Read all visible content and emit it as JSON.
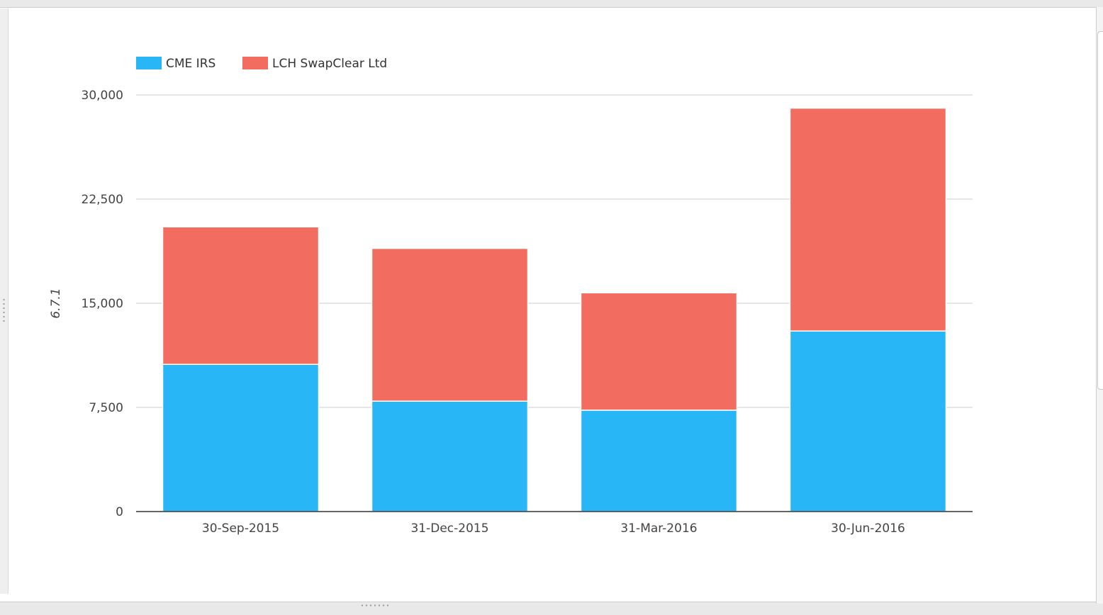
{
  "chart_data": {
    "type": "bar",
    "stacked": true,
    "title": "",
    "xlabel": "",
    "ylabel": "6.7.1",
    "categories": [
      "30-Sep-2015",
      "31-Dec-2015",
      "31-Mar-2016",
      "30-Jun-2016"
    ],
    "series": [
      {
        "name": "CME IRS",
        "color": "#29b6f6",
        "values": [
          10600,
          7950,
          7300,
          13000
        ]
      },
      {
        "name": "LCH SwapClear Ltd",
        "color": "#f26c5f",
        "values": [
          9900,
          11000,
          8450,
          16050
        ]
      }
    ],
    "ylim": [
      0,
      30000
    ],
    "yticks": [
      0,
      7500,
      15000,
      22500,
      30000
    ],
    "ytick_labels": [
      "0",
      "7,500",
      "15,000",
      "22,500",
      "30,000"
    ],
    "grid": true,
    "legend_position": "top-left"
  }
}
